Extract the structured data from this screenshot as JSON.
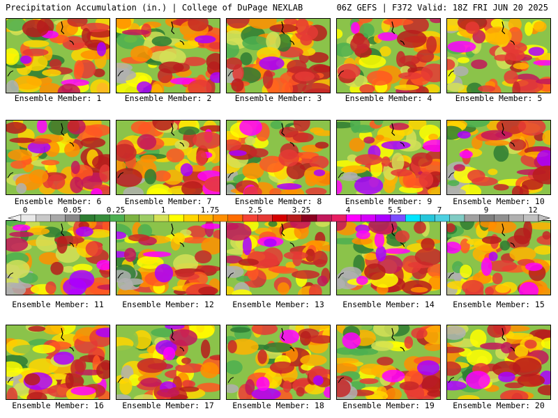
{
  "header": {
    "left": "Precipitation Accumulation (in.) | College of DuPage NEXLAB",
    "right": "06Z GEFS | F372 Valid: 18Z FRI JUN 20 2025"
  },
  "members": [
    {
      "label": "Ensemble Member: 1"
    },
    {
      "label": "Ensemble Member: 2"
    },
    {
      "label": "Ensemble Member: 3"
    },
    {
      "label": "Ensemble Member: 4"
    },
    {
      "label": "Ensemble Member: 5"
    },
    {
      "label": "Ensemble Member: 6"
    },
    {
      "label": "Ensemble Member: 7"
    },
    {
      "label": "Ensemble Member: 8"
    },
    {
      "label": "Ensemble Member: 9"
    },
    {
      "label": "Ensemble Member: 10"
    },
    {
      "label": "Ensemble Member: 11"
    },
    {
      "label": "Ensemble Member: 12"
    },
    {
      "label": "Ensemble Member: 13"
    },
    {
      "label": "Ensemble Member: 14"
    },
    {
      "label": "Ensemble Member: 15"
    },
    {
      "label": "Ensemble Member: 16"
    },
    {
      "label": "Ensemble Member: 17"
    },
    {
      "label": "Ensemble Member: 18"
    },
    {
      "label": "Ensemble Member: 19"
    },
    {
      "label": "Ensemble Member: 20"
    }
  ],
  "colorbar": {
    "labels": [
      "0",
      "0.05",
      "0.25",
      "1",
      "1.75",
      "2.5",
      "3.25",
      "4",
      "5.5",
      "7",
      "9",
      "12"
    ],
    "colors": [
      "#e8e8e8",
      "#c8c8c8",
      "#a8a8a8",
      "#888888",
      "#2e7d32",
      "#388e3c",
      "#4caf50",
      "#7cb342",
      "#9ccc65",
      "#d4e157",
      "#ffff00",
      "#ffd600",
      "#ffb300",
      "#ff8f00",
      "#ff6d00",
      "#f44336",
      "#e53935",
      "#d50000",
      "#b71c1c",
      "#8b0020",
      "#c2185b",
      "#e91e63",
      "#ff00ff",
      "#d500f9",
      "#aa00ff",
      "#7c4dff",
      "#00e5ff",
      "#26c6da",
      "#4dd0e1",
      "#80cbc4",
      "#a0a0a0",
      "#808080",
      "#909090",
      "#b0b0b0",
      "#c0c0c0"
    ]
  }
}
